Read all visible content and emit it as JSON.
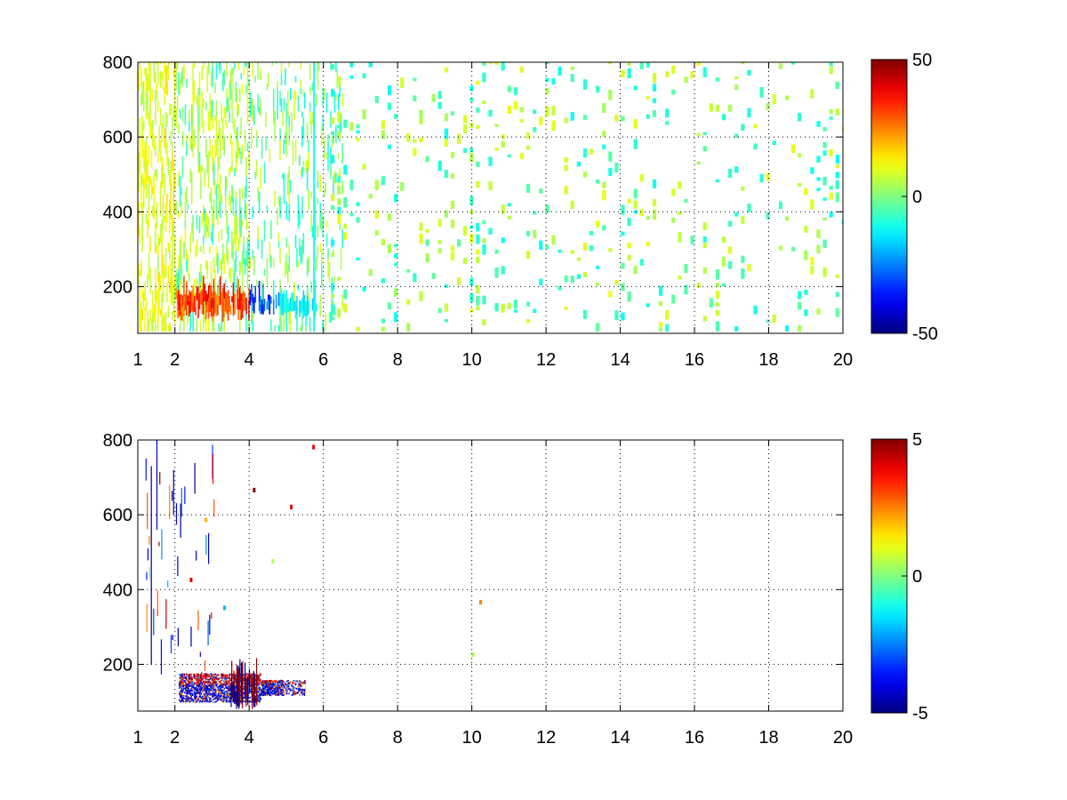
{
  "figure": {
    "background": "#ffffff",
    "axis_color": "#000000",
    "grid_style": "dotted"
  },
  "chart_data": [
    {
      "type": "heatmap",
      "title": "",
      "xlabel": "",
      "ylabel": "",
      "xlim": [
        1,
        20
      ],
      "ylim": [
        75,
        800
      ],
      "x_ticks": [
        1,
        2,
        4,
        6,
        8,
        10,
        12,
        14,
        16,
        18,
        20
      ],
      "x_tick_labels": [
        "1",
        "2",
        "4",
        "6",
        "8",
        "10",
        "12",
        "14",
        "16",
        "18",
        "20"
      ],
      "y_ticks": [
        200,
        400,
        600,
        800
      ],
      "y_tick_labels": [
        "200",
        "400",
        "600",
        "800"
      ],
      "grid": true,
      "colormap": "jet",
      "colorbar": {
        "min": -50,
        "max": 50,
        "ticks": [
          -50,
          0,
          50
        ],
        "tick_labels": [
          "-50",
          "0",
          "50"
        ],
        "placement": "right"
      },
      "regions": [
        {
          "x": [
            2.0,
            4.0
          ],
          "y": [
            110,
            170
          ],
          "value": 30
        },
        {
          "x": [
            4.0,
            4.8
          ],
          "y": [
            120,
            160
          ],
          "value": -30
        },
        {
          "x": [
            4.8,
            5.7
          ],
          "y": [
            120,
            150
          ],
          "value": -12
        },
        {
          "x": [
            1.0,
            2.0
          ],
          "y": [
            80,
            800
          ],
          "value": 8
        },
        {
          "x": [
            2.0,
            4.0
          ],
          "y": [
            180,
            800
          ],
          "value": 6
        },
        {
          "x": [
            4.0,
            6.5
          ],
          "y": [
            80,
            800
          ],
          "value": 0
        },
        {
          "x": [
            6.5,
            20.0
          ],
          "y": [
            80,
            800
          ],
          "value": 0
        }
      ]
    },
    {
      "type": "heatmap",
      "title": "",
      "xlabel": "",
      "ylabel": "",
      "xlim": [
        1,
        20
      ],
      "ylim": [
        75,
        800
      ],
      "x_ticks": [
        1,
        2,
        4,
        6,
        8,
        10,
        12,
        14,
        16,
        18,
        20
      ],
      "x_tick_labels": [
        "1",
        "2",
        "4",
        "6",
        "8",
        "10",
        "12",
        "14",
        "16",
        "18",
        "20"
      ],
      "y_ticks": [
        200,
        400,
        600,
        800
      ],
      "y_tick_labels": [
        "200",
        "400",
        "600",
        "800"
      ],
      "grid": true,
      "colormap": "jet",
      "colorbar": {
        "min": -5,
        "max": 5,
        "ticks": [
          -5,
          0,
          5
        ],
        "tick_labels": [
          "-5",
          "0",
          "5"
        ],
        "placement": "right"
      },
      "regions": [
        {
          "x": [
            2.1,
            4.1
          ],
          "y": [
            120,
            165
          ],
          "value": 4
        },
        {
          "x": [
            2.1,
            5.5
          ],
          "y": [
            110,
            150
          ],
          "value": -4.5
        },
        {
          "x": [
            3.6,
            4.3
          ],
          "y": [
            80,
            200
          ],
          "value": 3
        },
        {
          "x": [
            1.2,
            2.0
          ],
          "y": [
            150,
            800
          ],
          "value": -3
        }
      ],
      "points": [
        {
          "x": 4.1,
          "y": 660,
          "value": 5
        },
        {
          "x": 4.6,
          "y": 470,
          "value": 0.5
        },
        {
          "x": 5.7,
          "y": 775,
          "value": 4
        },
        {
          "x": 5.1,
          "y": 615,
          "value": 4
        },
        {
          "x": 10.0,
          "y": 220,
          "value": 0.5
        },
        {
          "x": 10.2,
          "y": 360,
          "value": 2.5
        },
        {
          "x": 2.4,
          "y": 420,
          "value": 4
        },
        {
          "x": 2.8,
          "y": 580,
          "value": 2
        },
        {
          "x": 3.3,
          "y": 345,
          "value": -2
        }
      ]
    }
  ]
}
